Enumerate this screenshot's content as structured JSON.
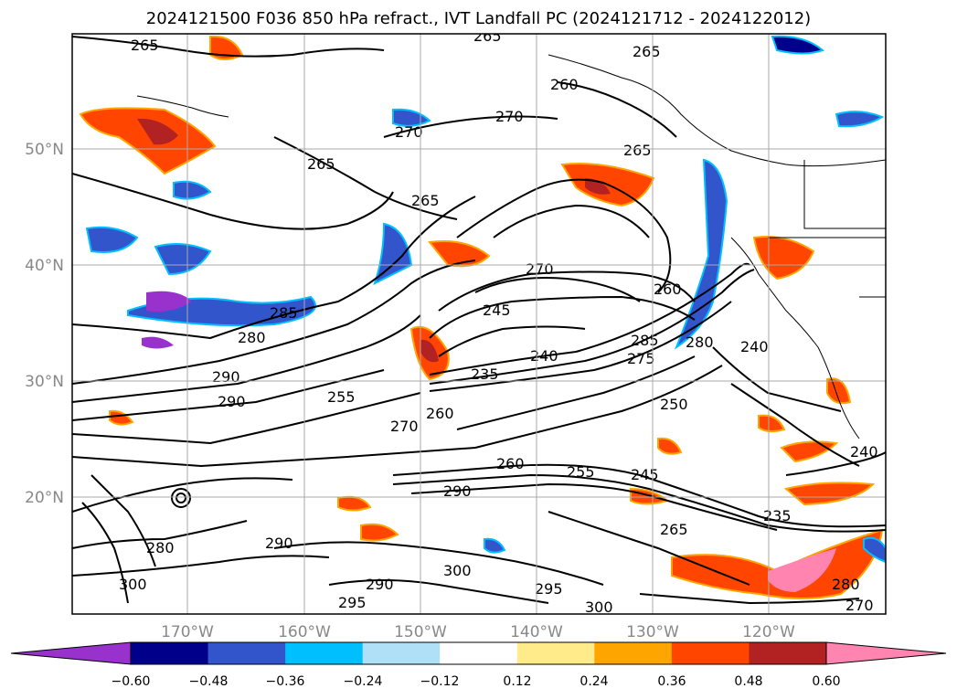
{
  "title": "2024121500 F036 850 hPa refract., IVT Landfall PC (2024121712 - 2024122012)",
  "map": {
    "lat_labels": [
      "50°N",
      "40°N",
      "30°N",
      "20°N"
    ],
    "lon_labels": [
      "170°W",
      "160°W",
      "150°W",
      "140°W",
      "130°W",
      "120°W"
    ],
    "contour_labels": [
      "265",
      "265",
      "265",
      "260",
      "270",
      "270",
      "265",
      "265",
      "265",
      "270",
      "260",
      "245",
      "235",
      "240",
      "280",
      "285",
      "290",
      "290",
      "255",
      "260",
      "270",
      "275",
      "285",
      "280",
      "240",
      "290",
      "250",
      "260",
      "255",
      "245",
      "265",
      "235",
      "240",
      "290",
      "300",
      "295",
      "300",
      "290",
      "280",
      "300",
      "295",
      "280",
      "270"
    ]
  },
  "colorbar": {
    "ticks": [
      "−0.60",
      "−0.48",
      "−0.36",
      "−0.24",
      "−0.12",
      "0.12",
      "0.24",
      "0.36",
      "0.48",
      "0.60"
    ],
    "colors": [
      "#9932cc",
      "#00008b",
      "#3355cc",
      "#00bfff",
      "#b0e0f8",
      "#ffffff",
      "#ffeb8a",
      "#ffa500",
      "#ff4500",
      "#b22222",
      "#ff85b0"
    ]
  }
}
